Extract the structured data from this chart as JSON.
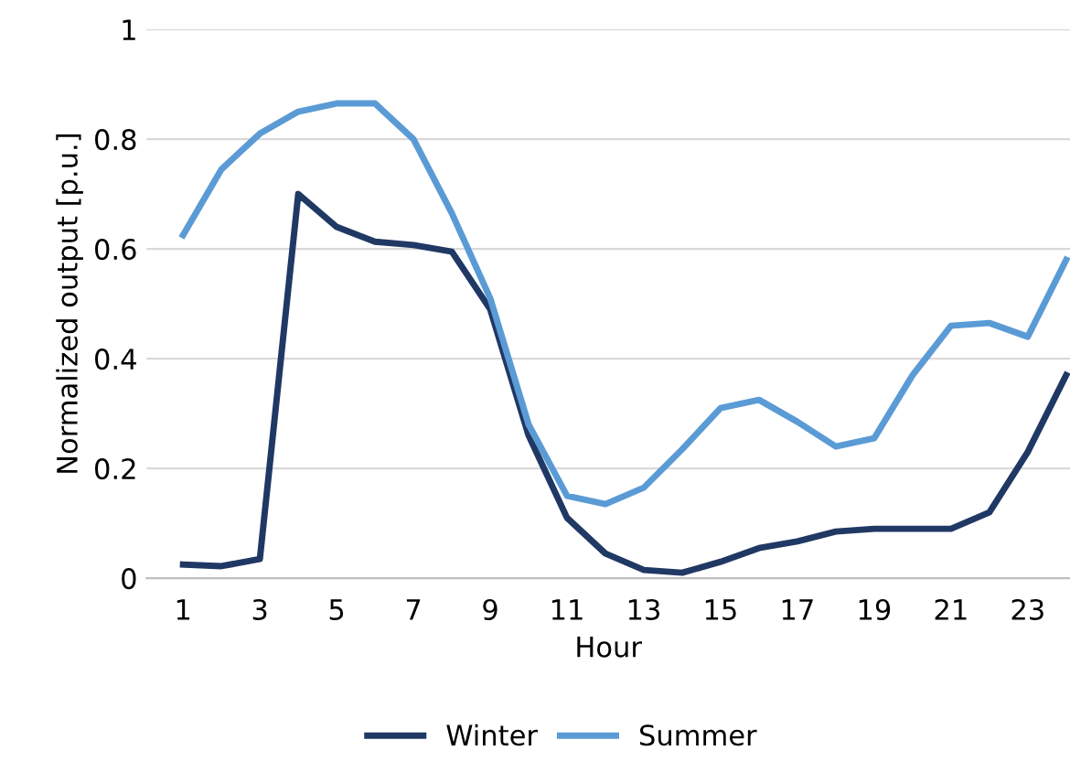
{
  "chart_data": {
    "type": "line",
    "xlabel": "Hour",
    "ylabel": "Normalized output [p.u.]",
    "x": [
      1,
      2,
      3,
      4,
      5,
      6,
      7,
      8,
      9,
      10,
      11,
      12,
      13,
      14,
      15,
      16,
      17,
      18,
      19,
      20,
      21,
      22,
      23,
      24
    ],
    "series": [
      {
        "name": "Winter",
        "color": "#203864",
        "values": [
          0.025,
          0.022,
          0.035,
          0.7,
          0.64,
          0.613,
          0.607,
          0.595,
          0.49,
          0.26,
          0.11,
          0.045,
          0.015,
          0.01,
          0.03,
          0.055,
          0.067,
          0.085,
          0.09,
          0.09,
          0.09,
          0.12,
          0.23,
          0.37
        ]
      },
      {
        "name": "Summer",
        "color": "#5b9bd5",
        "values": [
          0.625,
          0.745,
          0.81,
          0.85,
          0.865,
          0.865,
          0.8,
          0.665,
          0.51,
          0.28,
          0.15,
          0.135,
          0.165,
          0.235,
          0.31,
          0.325,
          0.285,
          0.24,
          0.255,
          0.37,
          0.46,
          0.465,
          0.44,
          0.58
        ]
      }
    ],
    "xlim": [
      0.05,
      24.1
    ],
    "xticks": [
      1,
      3,
      5,
      7,
      9,
      11,
      13,
      15,
      17,
      19,
      21,
      23
    ],
    "ylim": [
      0,
      1
    ],
    "yticks": [
      0,
      0.2,
      0.4,
      0.6,
      0.8,
      1
    ],
    "grid": "y",
    "legend": "bottom",
    "marker": "none",
    "line_style": "solid"
  }
}
